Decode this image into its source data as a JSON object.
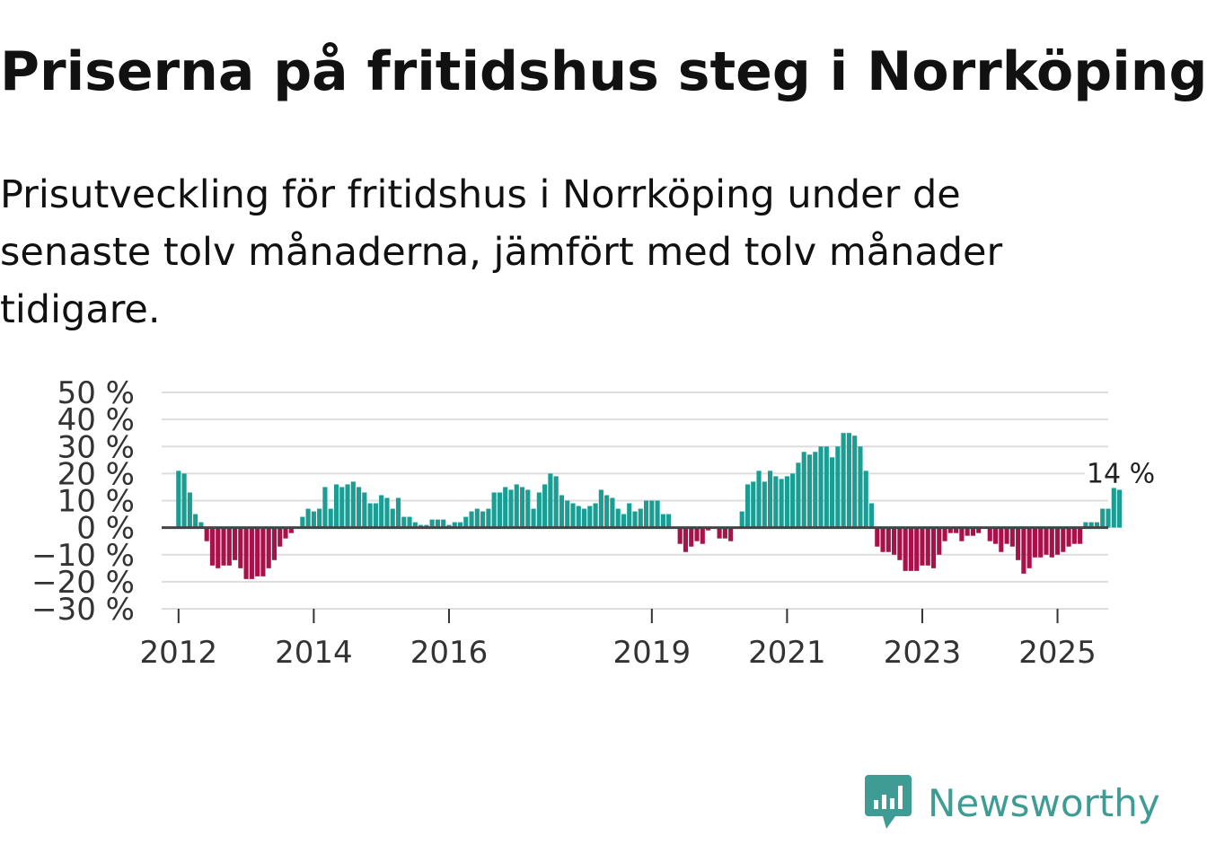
{
  "title": "Priserna på fritidshus steg i Norrköping",
  "subtitle": "Prisutveckling för fritidshus i Norrköping under de senaste tolv månaderna, jämfört med tolv månader tidigare.",
  "brand": {
    "name": "Newsworthy",
    "icon": "newsworthy-logo-icon"
  },
  "colors": {
    "positive": "#1a9e94",
    "negative": "#a8114a",
    "grid": "#dddddd",
    "zero": "#444444",
    "text": "#111111",
    "brand": "#3f9c94"
  },
  "chart_data": {
    "type": "bar",
    "title": "Priserna på fritidshus steg i Norrköping",
    "ylabel": "",
    "xlabel": "",
    "ylim": [
      -30,
      50
    ],
    "yticks": [
      50,
      40,
      30,
      20,
      10,
      0,
      -10,
      -20,
      -30
    ],
    "ytick_labels": [
      "50 %",
      "40 %",
      "30 %",
      "20 %",
      "10 %",
      "0 %",
      "−10 %",
      "−20 %",
      "−30 %"
    ],
    "xlim": [
      2011.75,
      2025.75
    ],
    "xticks": [
      2012,
      2014,
      2016,
      2019,
      2021,
      2023,
      2025
    ],
    "xtick_labels": [
      "2012",
      "2014",
      "2016",
      "2019",
      "2021",
      "2023",
      "2025"
    ],
    "start_year": 2012,
    "start_month": 1,
    "last_label": "14 %",
    "values": [
      21,
      20,
      13,
      5,
      2,
      -5,
      -14,
      -15,
      -14,
      -14,
      -12,
      -15,
      -19,
      -19,
      -18,
      -18,
      -15,
      -12,
      -7,
      -4,
      -2,
      0,
      4,
      7,
      6,
      7,
      15,
      7,
      16,
      15,
      16,
      17,
      15,
      13,
      9,
      9,
      12,
      11,
      7,
      11,
      4,
      4,
      2,
      1,
      1,
      3,
      3,
      3,
      1,
      2,
      2,
      4,
      6,
      7,
      6,
      7,
      13,
      13,
      15,
      14,
      16,
      15,
      14,
      7,
      13,
      16,
      20,
      19,
      12,
      10,
      9,
      8,
      7,
      8,
      9,
      14,
      12,
      11,
      7,
      5,
      9,
      6,
      7,
      10,
      10,
      10,
      5,
      5,
      0,
      -6,
      -9,
      -7,
      -5,
      -6,
      -1,
      0,
      -4,
      -4,
      -5,
      0,
      6,
      16,
      17,
      21,
      17,
      21,
      19,
      18,
      19,
      20,
      24,
      28,
      27,
      28,
      30,
      30,
      26,
      30,
      35,
      35,
      34,
      30,
      21,
      9,
      -7,
      -9,
      -9,
      -10,
      -12,
      -16,
      -16,
      -16,
      -14,
      -14,
      -15,
      -10,
      -5,
      -2,
      -2,
      -5,
      -3,
      -3,
      -2,
      0,
      -5,
      -6,
      -9,
      -6,
      -7,
      -12,
      -17,
      -15,
      -11,
      -11,
      -10,
      -11,
      -10,
      -9,
      -7,
      -6,
      -6,
      2,
      2,
      2,
      7,
      7,
      15,
      14
    ]
  }
}
